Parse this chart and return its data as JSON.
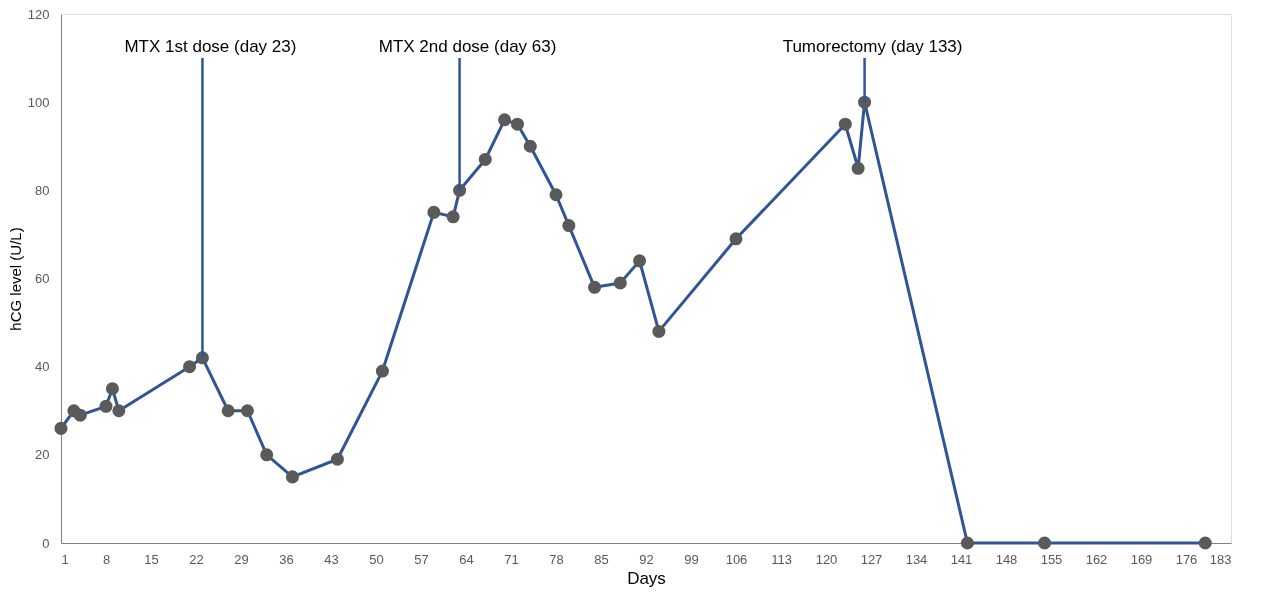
{
  "chart_data": {
    "type": "line",
    "xlabel": "Days",
    "ylabel": "hCG level (U/L)",
    "x": [
      1,
      3,
      4,
      8,
      9,
      10,
      21,
      23,
      27,
      30,
      33,
      37,
      44,
      51,
      59,
      62,
      63,
      67,
      70,
      72,
      74,
      78,
      80,
      84,
      88,
      91,
      94,
      106,
      123,
      125,
      126,
      142,
      154,
      179
    ],
    "series": [
      {
        "color": "#2f5597",
        "values": [
          26,
          30,
          29,
          31,
          35,
          30,
          40,
          42,
          30,
          30,
          20,
          15,
          19,
          39,
          75,
          74,
          80,
          87,
          96,
          95,
          90,
          79,
          72,
          58,
          59,
          64,
          48,
          69,
          95,
          85,
          100,
          0,
          0,
          0
        ]
      }
    ],
    "xlim": [
      1,
      183
    ],
    "xticks": [
      1,
      8,
      15,
      22,
      29,
      36,
      43,
      50,
      57,
      64,
      71,
      78,
      85,
      92,
      99,
      106,
      113,
      120,
      127,
      134,
      141,
      148,
      155,
      162,
      169,
      176,
      183
    ],
    "ylim": [
      0,
      120
    ],
    "yticks": [
      0,
      20,
      40,
      60,
      80,
      100,
      120
    ],
    "marker": "circle",
    "grid": false,
    "ref_lines": [
      {
        "axis": "x",
        "value": 23,
        "label": "MTX 1st dose (day 23)",
        "color": "#2f5597"
      },
      {
        "axis": "x",
        "value": 63,
        "label": "MTX 2nd dose (day 63)",
        "color": "#2f5597"
      },
      {
        "axis": "x",
        "value": 126,
        "label": "Tumorectomy (day 133)",
        "color": "#2f5597"
      }
    ]
  }
}
